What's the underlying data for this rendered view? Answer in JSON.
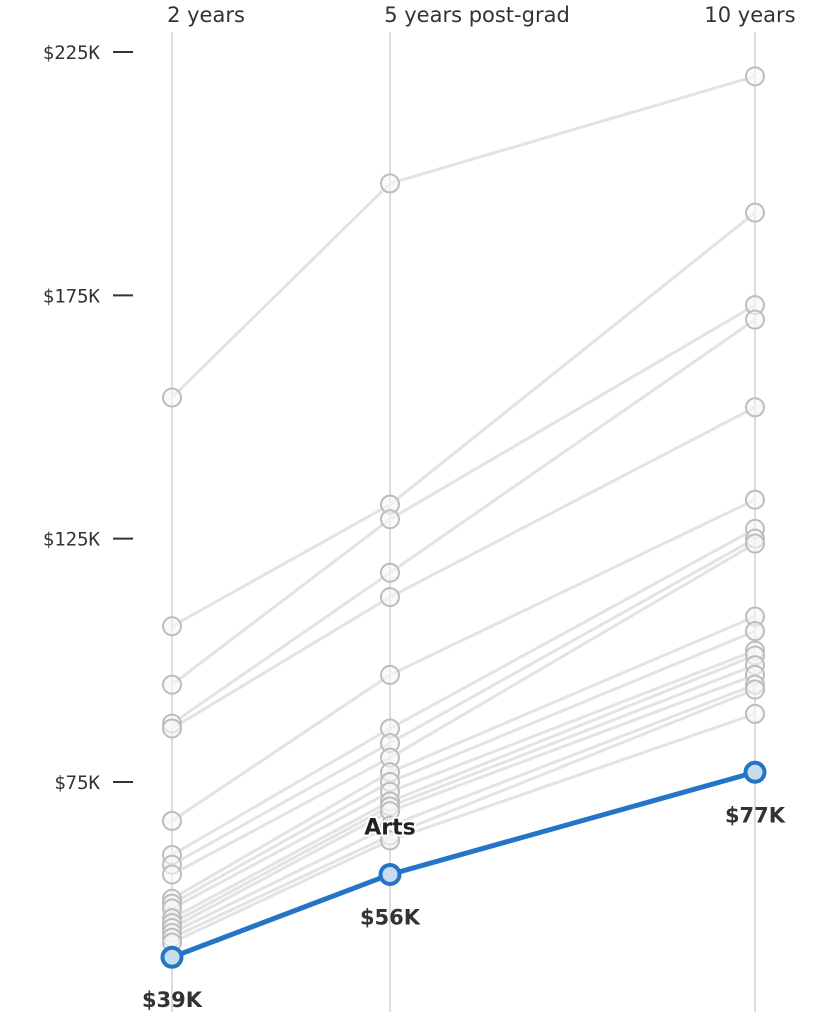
{
  "chart_data": {
    "type": "line",
    "x": [
      "2 years",
      "5 years post-grad",
      "10 years"
    ],
    "yticks": [
      "$225K",
      "$175K",
      "$125K",
      "$75K"
    ],
    "ytick_values": [
      225000,
      175000,
      125000,
      75000
    ],
    "ylim": [
      37000,
      230000
    ],
    "grid": false,
    "highlight": {
      "name": "Arts",
      "values": [
        39000,
        56000,
        77000
      ],
      "value_labels": [
        "$39K",
        "$56K",
        "$77K"
      ],
      "color": "#2475c8"
    },
    "background_series": [
      {
        "values": [
          154000,
          198000,
          220000
        ]
      },
      {
        "values": [
          107000,
          132000,
          192000
        ]
      },
      {
        "values": [
          95000,
          129000,
          173000
        ]
      },
      {
        "values": [
          87000,
          118000,
          170000
        ]
      },
      {
        "values": [
          86000,
          113000,
          152000
        ]
      },
      {
        "values": [
          67000,
          97000,
          133000
        ]
      },
      {
        "values": [
          60000,
          86000,
          127000
        ]
      },
      {
        "values": [
          58000,
          83000,
          125000
        ]
      },
      {
        "values": [
          56000,
          80000,
          124000
        ]
      },
      {
        "values": [
          51000,
          77000,
          109000
        ]
      },
      {
        "values": [
          50000,
          75000,
          106000
        ]
      },
      {
        "values": [
          49000,
          73000,
          102000
        ]
      },
      {
        "values": [
          47000,
          71000,
          101000
        ]
      },
      {
        "values": [
          46000,
          70000,
          99000
        ]
      },
      {
        "values": [
          45000,
          69000,
          97000
        ]
      },
      {
        "values": [
          44000,
          66000,
          95000
        ]
      },
      {
        "values": [
          43000,
          64000,
          94000
        ]
      },
      {
        "values": [
          42000,
          63000,
          89000
        ]
      }
    ],
    "colors": {
      "background_line": "#e3e3e3",
      "background_dot_stroke": "#bdbdbd",
      "highlight": "#2475c8"
    }
  }
}
